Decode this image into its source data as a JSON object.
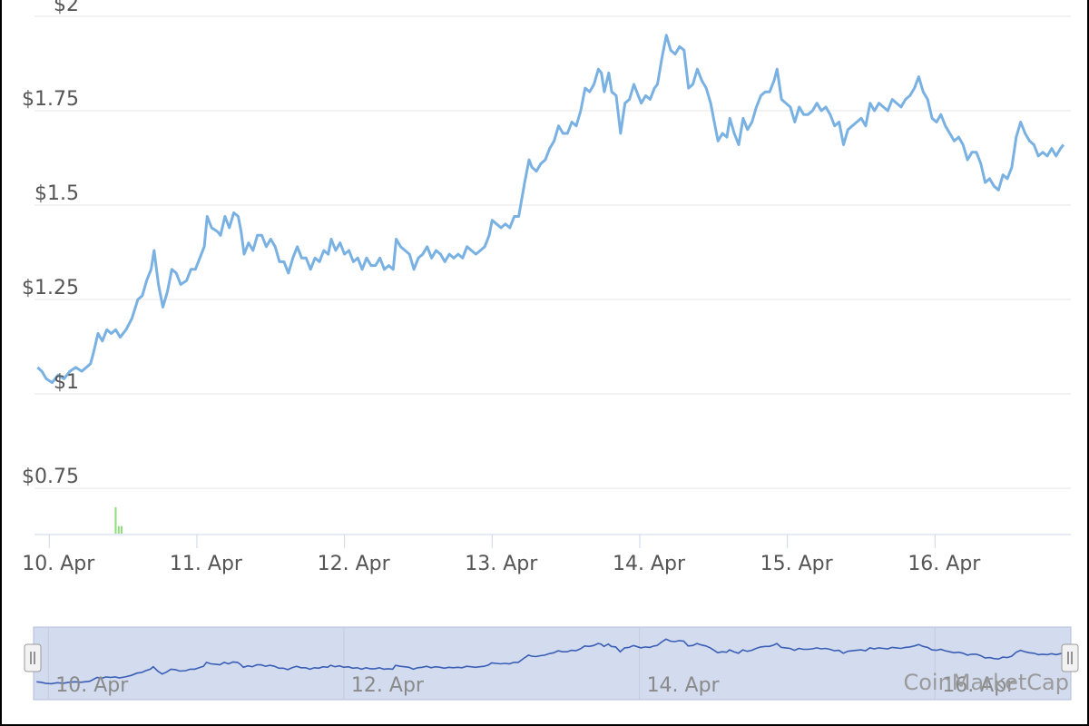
{
  "chart_data": {
    "type": "line",
    "title": "",
    "xlabel": "",
    "ylabel": "",
    "y_range": [
      0.63,
      2
    ],
    "y_ticks": [
      {
        "value": 0.75,
        "label": "$0.75"
      },
      {
        "value": 1,
        "label": "$1"
      },
      {
        "value": 1.25,
        "label": "$1.25"
      },
      {
        "value": 1.5,
        "label": "$1.5"
      },
      {
        "value": 1.75,
        "label": "$1.75"
      },
      {
        "value": 2,
        "label": "$2"
      }
    ],
    "x_range": [
      9.9,
      16.92
    ],
    "x_ticks": [
      {
        "value": 10,
        "label": "10. Apr"
      },
      {
        "value": 11,
        "label": "11. Apr"
      },
      {
        "value": 12,
        "label": "12. Apr"
      },
      {
        "value": 13,
        "label": "13. Apr"
      },
      {
        "value": 14,
        "label": "14. Apr"
      },
      {
        "value": 15,
        "label": "15. Apr"
      },
      {
        "value": 16,
        "label": "16. Apr"
      }
    ],
    "grid": true,
    "series": [
      {
        "color": "#7ab1e3",
        "points": [
          [
            9.92,
            1.07
          ],
          [
            9.95,
            1.06
          ],
          [
            9.98,
            1.04
          ],
          [
            10.02,
            1.03
          ],
          [
            10.06,
            1.05
          ],
          [
            10.1,
            1.04
          ],
          [
            10.14,
            1.06
          ],
          [
            10.18,
            1.07
          ],
          [
            10.22,
            1.06
          ],
          [
            10.28,
            1.08
          ],
          [
            10.3,
            1.11
          ],
          [
            10.33,
            1.16
          ],
          [
            10.36,
            1.14
          ],
          [
            10.39,
            1.17
          ],
          [
            10.42,
            1.16
          ],
          [
            10.45,
            1.17
          ],
          [
            10.48,
            1.15
          ],
          [
            10.52,
            1.17
          ],
          [
            10.56,
            1.2
          ],
          [
            10.6,
            1.25
          ],
          [
            10.63,
            1.26
          ],
          [
            10.66,
            1.3
          ],
          [
            10.69,
            1.33
          ],
          [
            10.71,
            1.38
          ],
          [
            10.74,
            1.29
          ],
          [
            10.77,
            1.23
          ],
          [
            10.8,
            1.27
          ],
          [
            10.83,
            1.33
          ],
          [
            10.86,
            1.32
          ],
          [
            10.89,
            1.29
          ],
          [
            10.93,
            1.3
          ],
          [
            10.96,
            1.33
          ],
          [
            10.99,
            1.33
          ],
          [
            11.02,
            1.36
          ],
          [
            11.05,
            1.39
          ],
          [
            11.07,
            1.47
          ],
          [
            11.1,
            1.44
          ],
          [
            11.14,
            1.43
          ],
          [
            11.16,
            1.42
          ],
          [
            11.19,
            1.47
          ],
          [
            11.22,
            1.44
          ],
          [
            11.25,
            1.48
          ],
          [
            11.28,
            1.47
          ],
          [
            11.3,
            1.43
          ],
          [
            11.32,
            1.37
          ],
          [
            11.35,
            1.4
          ],
          [
            11.38,
            1.38
          ],
          [
            11.41,
            1.42
          ],
          [
            11.44,
            1.42
          ],
          [
            11.47,
            1.39
          ],
          [
            11.5,
            1.41
          ],
          [
            11.53,
            1.39
          ],
          [
            11.56,
            1.35
          ],
          [
            11.59,
            1.35
          ],
          [
            11.62,
            1.32
          ],
          [
            11.65,
            1.36
          ],
          [
            11.68,
            1.39
          ],
          [
            11.71,
            1.36
          ],
          [
            11.74,
            1.36
          ],
          [
            11.77,
            1.33
          ],
          [
            11.8,
            1.36
          ],
          [
            11.83,
            1.35
          ],
          [
            11.86,
            1.38
          ],
          [
            11.89,
            1.37
          ],
          [
            11.91,
            1.41
          ],
          [
            11.94,
            1.38
          ],
          [
            11.97,
            1.4
          ],
          [
            12.0,
            1.37
          ],
          [
            12.03,
            1.38
          ],
          [
            12.06,
            1.35
          ],
          [
            12.09,
            1.36
          ],
          [
            12.12,
            1.33
          ],
          [
            12.15,
            1.36
          ],
          [
            12.18,
            1.34
          ],
          [
            12.21,
            1.34
          ],
          [
            12.24,
            1.36
          ],
          [
            12.27,
            1.33
          ],
          [
            12.3,
            1.34
          ],
          [
            12.33,
            1.33
          ],
          [
            12.35,
            1.41
          ],
          [
            12.38,
            1.39
          ],
          [
            12.41,
            1.38
          ],
          [
            12.44,
            1.37
          ],
          [
            12.47,
            1.33
          ],
          [
            12.5,
            1.36
          ],
          [
            12.53,
            1.37
          ],
          [
            12.56,
            1.39
          ],
          [
            12.59,
            1.36
          ],
          [
            12.62,
            1.38
          ],
          [
            12.65,
            1.37
          ],
          [
            12.68,
            1.35
          ],
          [
            12.71,
            1.37
          ],
          [
            12.74,
            1.36
          ],
          [
            12.77,
            1.37
          ],
          [
            12.8,
            1.36
          ],
          [
            12.83,
            1.39
          ],
          [
            12.86,
            1.38
          ],
          [
            12.89,
            1.37
          ],
          [
            12.92,
            1.38
          ],
          [
            12.95,
            1.39
          ],
          [
            12.98,
            1.42
          ],
          [
            13.0,
            1.46
          ],
          [
            13.03,
            1.45
          ],
          [
            13.06,
            1.44
          ],
          [
            13.09,
            1.45
          ],
          [
            13.12,
            1.44
          ],
          [
            13.15,
            1.47
          ],
          [
            13.18,
            1.47
          ],
          [
            13.22,
            1.56
          ],
          [
            13.25,
            1.62
          ],
          [
            13.27,
            1.6
          ],
          [
            13.3,
            1.59
          ],
          [
            13.33,
            1.61
          ],
          [
            13.36,
            1.62
          ],
          [
            13.39,
            1.65
          ],
          [
            13.42,
            1.67
          ],
          [
            13.45,
            1.71
          ],
          [
            13.48,
            1.69
          ],
          [
            13.51,
            1.69
          ],
          [
            13.54,
            1.72
          ],
          [
            13.57,
            1.71
          ],
          [
            13.6,
            1.75
          ],
          [
            13.63,
            1.81
          ],
          [
            13.66,
            1.8
          ],
          [
            13.69,
            1.82
          ],
          [
            13.72,
            1.86
          ],
          [
            13.74,
            1.85
          ],
          [
            13.76,
            1.8
          ],
          [
            13.79,
            1.85
          ],
          [
            13.81,
            1.8
          ],
          [
            13.84,
            1.79
          ],
          [
            13.87,
            1.69
          ],
          [
            13.9,
            1.77
          ],
          [
            13.93,
            1.78
          ],
          [
            13.96,
            1.82
          ],
          [
            13.98,
            1.8
          ],
          [
            14.01,
            1.77
          ],
          [
            14.04,
            1.79
          ],
          [
            14.07,
            1.78
          ],
          [
            14.1,
            1.81
          ],
          [
            14.12,
            1.82
          ],
          [
            14.15,
            1.89
          ],
          [
            14.18,
            1.95
          ],
          [
            14.21,
            1.91
          ],
          [
            14.24,
            1.9
          ],
          [
            14.27,
            1.92
          ],
          [
            14.3,
            1.91
          ],
          [
            14.33,
            1.81
          ],
          [
            14.36,
            1.82
          ],
          [
            14.39,
            1.86
          ],
          [
            14.42,
            1.83
          ],
          [
            14.45,
            1.81
          ],
          [
            14.48,
            1.77
          ],
          [
            14.51,
            1.71
          ],
          [
            14.53,
            1.67
          ],
          [
            14.56,
            1.69
          ],
          [
            14.59,
            1.68
          ],
          [
            14.61,
            1.73
          ],
          [
            14.64,
            1.69
          ],
          [
            14.67,
            1.66
          ],
          [
            14.7,
            1.73
          ],
          [
            14.73,
            1.7
          ],
          [
            14.76,
            1.72
          ],
          [
            14.79,
            1.76
          ],
          [
            14.82,
            1.79
          ],
          [
            14.85,
            1.8
          ],
          [
            14.88,
            1.8
          ],
          [
            14.91,
            1.83
          ],
          [
            14.93,
            1.86
          ],
          [
            14.96,
            1.78
          ],
          [
            14.99,
            1.77
          ],
          [
            15.02,
            1.76
          ],
          [
            15.05,
            1.72
          ],
          [
            15.08,
            1.76
          ],
          [
            15.11,
            1.74
          ],
          [
            15.14,
            1.74
          ],
          [
            15.17,
            1.75
          ],
          [
            15.2,
            1.77
          ],
          [
            15.23,
            1.75
          ],
          [
            15.26,
            1.76
          ],
          [
            15.29,
            1.74
          ],
          [
            15.32,
            1.71
          ],
          [
            15.35,
            1.72
          ],
          [
            15.38,
            1.66
          ],
          [
            15.41,
            1.7
          ],
          [
            15.44,
            1.71
          ],
          [
            15.47,
            1.72
          ],
          [
            15.5,
            1.73
          ],
          [
            15.53,
            1.71
          ],
          [
            15.56,
            1.77
          ],
          [
            15.59,
            1.75
          ],
          [
            15.62,
            1.77
          ],
          [
            15.65,
            1.76
          ],
          [
            15.68,
            1.75
          ],
          [
            15.71,
            1.78
          ],
          [
            15.74,
            1.77
          ],
          [
            15.77,
            1.76
          ],
          [
            15.8,
            1.78
          ],
          [
            15.83,
            1.79
          ],
          [
            15.86,
            1.81
          ],
          [
            15.89,
            1.84
          ],
          [
            15.92,
            1.8
          ],
          [
            15.95,
            1.78
          ],
          [
            15.98,
            1.73
          ],
          [
            16.01,
            1.72
          ],
          [
            16.04,
            1.74
          ],
          [
            16.07,
            1.71
          ],
          [
            16.1,
            1.69
          ],
          [
            16.13,
            1.67
          ],
          [
            16.16,
            1.68
          ],
          [
            16.19,
            1.66
          ],
          [
            16.22,
            1.62
          ],
          [
            16.25,
            1.64
          ],
          [
            16.28,
            1.64
          ],
          [
            16.31,
            1.61
          ],
          [
            16.34,
            1.56
          ],
          [
            16.37,
            1.57
          ],
          [
            16.4,
            1.55
          ],
          [
            16.43,
            1.54
          ],
          [
            16.46,
            1.58
          ],
          [
            16.49,
            1.57
          ],
          [
            16.52,
            1.6
          ],
          [
            16.55,
            1.68
          ],
          [
            16.58,
            1.72
          ],
          [
            16.61,
            1.69
          ],
          [
            16.64,
            1.67
          ],
          [
            16.67,
            1.66
          ],
          [
            16.7,
            1.63
          ],
          [
            16.73,
            1.64
          ],
          [
            16.76,
            1.63
          ],
          [
            16.79,
            1.65
          ],
          [
            16.82,
            1.63
          ],
          [
            16.85,
            1.65
          ],
          [
            16.87,
            1.66
          ]
        ]
      }
    ],
    "volume": {
      "color": "#90dd7a",
      "bars": [
        [
          10.45,
          0.7
        ],
        [
          10.47,
          0.65
        ],
        [
          10.49,
          0.65
        ],
        [
          10.51,
          0.6
        ],
        [
          10.53,
          0.58
        ],
        [
          10.55,
          0.55
        ],
        [
          10.57,
          0.52
        ]
      ]
    },
    "navigator": {
      "x_ticks": [
        {
          "value": 10,
          "label": "10. Apr"
        },
        {
          "value": 12,
          "label": "12. Apr"
        },
        {
          "value": 14,
          "label": "14. Apr"
        },
        {
          "value": 16,
          "label": "16. Apr"
        }
      ],
      "line_color": "#3a5fb6",
      "fill_color": "#d3dbee"
    },
    "watermark": "CoinMarketCap"
  }
}
